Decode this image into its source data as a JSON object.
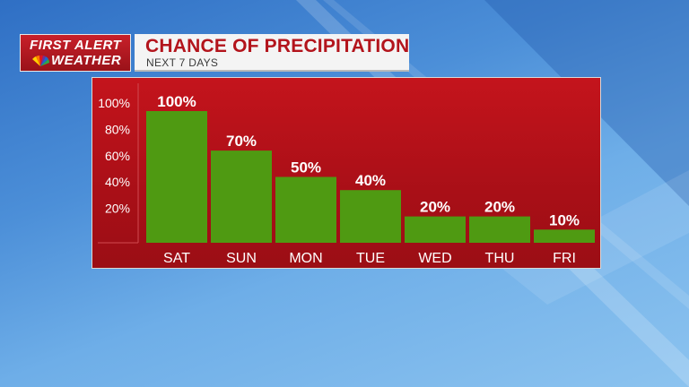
{
  "brand": {
    "line1": "FIRST ALERT",
    "line2": "WEATHER"
  },
  "header": {
    "title": "CHANCE OF PRECIPITATION",
    "subtitle": "NEXT 7 DAYS"
  },
  "colors": {
    "bar": "#4f9a12",
    "panel": "#b3121a",
    "title": "#b3141c"
  },
  "chart_data": {
    "type": "bar",
    "categories": [
      "SAT",
      "SUN",
      "MON",
      "TUE",
      "WED",
      "THU",
      "FRI"
    ],
    "values": [
      100,
      70,
      50,
      40,
      20,
      20,
      10
    ],
    "value_labels": [
      "100%",
      "70%",
      "50%",
      "40%",
      "20%",
      "20%",
      "10%"
    ],
    "yticks": [
      20,
      40,
      60,
      80,
      100
    ],
    "ytick_labels": [
      "20%",
      "40%",
      "60%",
      "80%",
      "100%"
    ],
    "ylim": [
      0,
      100
    ],
    "grid": false,
    "legend": "none"
  }
}
